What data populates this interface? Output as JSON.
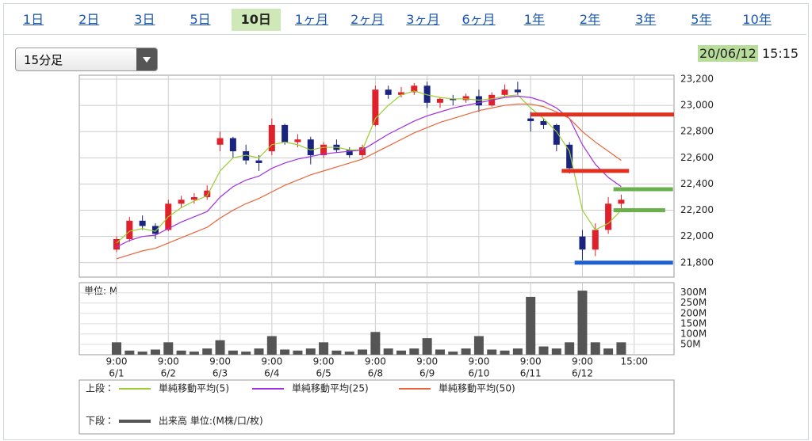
{
  "tabs": [
    "1日",
    "2日",
    "3日",
    "5日",
    "10日",
    "1ヶ月",
    "2ヶ月",
    "3ヶ月",
    "6ヶ月",
    "1年",
    "2年",
    "3年",
    "5年",
    "10年"
  ],
  "selected_tab": 4,
  "interval": "15分足",
  "timestamp": {
    "date": "20/06/12",
    "time": "15:15"
  },
  "chart_data": [
    {
      "type": "candlestick",
      "legend_prefix": "上段：",
      "xlim": [
        -0.72,
        10.77
      ],
      "xticks": [
        {
          "value": 0,
          "label": "9:00",
          "date": "6/1"
        },
        {
          "value": 1,
          "label": "9:00",
          "date": "6/2"
        },
        {
          "value": 2,
          "label": "9:00",
          "date": "6/3"
        },
        {
          "value": 3,
          "label": "9:00",
          "date": "6/4"
        },
        {
          "value": 4,
          "label": "9:00",
          "date": "6/5"
        },
        {
          "value": 5,
          "label": "9:00",
          "date": "6/8"
        },
        {
          "value": 6,
          "label": "9:00",
          "date": "6/9"
        },
        {
          "value": 7,
          "label": "9:00",
          "date": "6/10"
        },
        {
          "value": 8,
          "label": "9:00",
          "date": "6/11"
        },
        {
          "value": 9,
          "label": "9:00",
          "date": "6/12"
        },
        {
          "value": 10,
          "label": "15:00"
        }
      ],
      "ylim": [
        21690,
        23230
      ],
      "yticks": [
        {
          "value": 21800,
          "label": "21,800"
        },
        {
          "value": 22000,
          "label": "22,000"
        },
        {
          "value": 22200,
          "label": "22,200"
        },
        {
          "value": 22400,
          "label": "22,400"
        },
        {
          "value": 22600,
          "label": "22,600"
        },
        {
          "value": 22800,
          "label": "22,800"
        },
        {
          "value": 23000,
          "label": "23,000"
        },
        {
          "value": 23200,
          "label": "23,200"
        }
      ],
      "grid": true,
      "up_color": "#e0202a",
      "down_color": "#1a237e",
      "candles": {
        "x": [
          0,
          0.25,
          0.5,
          0.75,
          1,
          1.25,
          1.5,
          1.75,
          2,
          2.25,
          2.5,
          2.75,
          3,
          3.25,
          3.5,
          3.75,
          4,
          4.25,
          4.5,
          4.75,
          5,
          5.25,
          5.5,
          5.75,
          6,
          6.25,
          6.5,
          6.75,
          7,
          7.25,
          7.5,
          7.75,
          8,
          8.25,
          8.5,
          8.75,
          9,
          9.25,
          9.5,
          9.75
        ],
        "open": [
          21900,
          21980,
          22120,
          22080,
          22050,
          22250,
          22280,
          22300,
          22700,
          22750,
          22650,
          22580,
          22650,
          22850,
          22720,
          22740,
          22620,
          22700,
          22660,
          22620,
          22850,
          23120,
          23080,
          23100,
          23150,
          23020,
          23050,
          23040,
          23070,
          23000,
          23080,
          23120,
          22900,
          22880,
          22850,
          22700,
          22000,
          21900,
          22050,
          22250
        ],
        "high": [
          22000,
          22150,
          22160,
          22100,
          22280,
          22310,
          22330,
          22390,
          22800,
          22760,
          22700,
          22620,
          22900,
          22860,
          22780,
          22760,
          22720,
          22740,
          22680,
          22700,
          23150,
          23150,
          23140,
          23170,
          23180,
          23060,
          23080,
          23090,
          23120,
          23100,
          23160,
          23180,
          22950,
          22900,
          22860,
          22720,
          22050,
          22100,
          22300,
          22320
        ],
        "low": [
          21880,
          21960,
          22050,
          21980,
          22040,
          22220,
          22250,
          22280,
          22650,
          22600,
          22550,
          22500,
          22620,
          22700,
          22680,
          22550,
          22600,
          22640,
          22600,
          22600,
          22840,
          23050,
          23060,
          23080,
          22980,
          22980,
          23000,
          23020,
          22950,
          22990,
          23060,
          23080,
          22800,
          22820,
          22650,
          22480,
          21820,
          21850,
          22020,
          22200
        ],
        "close": [
          21980,
          22120,
          22080,
          22020,
          22250,
          22280,
          22300,
          22350,
          22750,
          22650,
          22580,
          22560,
          22850,
          22720,
          22740,
          22620,
          22700,
          22660,
          22620,
          22680,
          23120,
          23080,
          23100,
          23150,
          23020,
          23050,
          23040,
          23070,
          23000,
          23080,
          23120,
          23100,
          22880,
          22850,
          22700,
          22520,
          21900,
          22050,
          22250,
          22280
        ]
      },
      "series": [
        {
          "name": "単純移動平均(5)",
          "color": "#9acd32",
          "values": [
            21950,
            22040,
            22060,
            22040,
            22150,
            22220,
            22270,
            22310,
            22500,
            22600,
            22620,
            22600,
            22700,
            22720,
            22700,
            22660,
            22680,
            22680,
            22660,
            22660,
            22900,
            23000,
            23080,
            23110,
            23080,
            23060,
            23050,
            23050,
            23040,
            23050,
            23070,
            23080,
            22980,
            22900,
            22800,
            22650,
            22200,
            22050,
            22100,
            22200
          ]
        },
        {
          "name": "単純移動平均(25)",
          "color": "#a030e0",
          "values": [
            21920,
            21970,
            22000,
            22010,
            22060,
            22110,
            22150,
            22190,
            22300,
            22380,
            22430,
            22460,
            22520,
            22560,
            22590,
            22610,
            22630,
            22640,
            22650,
            22660,
            22720,
            22780,
            22830,
            22880,
            22920,
            22950,
            22980,
            23000,
            23020,
            23040,
            23060,
            23070,
            23060,
            23030,
            22980,
            22900,
            22700,
            22550,
            22450,
            22380
          ]
        },
        {
          "name": "単純移動平均(50)",
          "color": "#e8653a",
          "values": [
            21830,
            21860,
            21890,
            21910,
            21950,
            21990,
            22030,
            22070,
            22140,
            22200,
            22250,
            22290,
            22340,
            22390,
            22430,
            22470,
            22500,
            22530,
            22560,
            22590,
            22640,
            22690,
            22740,
            22790,
            22830,
            22870,
            22900,
            22930,
            22960,
            22980,
            23000,
            23010,
            23010,
            22990,
            22950,
            22900,
            22800,
            22720,
            22650,
            22580
          ]
        }
      ],
      "reference_lines": [
        {
          "value": 22930,
          "x": [
            8.0,
            10.77
          ],
          "color": "#e03020"
        },
        {
          "value": 22500,
          "x": [
            8.6,
            9.9
          ],
          "color": "#e03020"
        },
        {
          "value": 22360,
          "x": [
            9.6,
            10.75
          ],
          "color": "#6ab04c"
        },
        {
          "value": 22200,
          "x": [
            9.6,
            10.6
          ],
          "color": "#6ab04c"
        },
        {
          "value": 21800,
          "x": [
            8.85,
            10.75
          ],
          "color": "#1e5fd0"
        }
      ]
    },
    {
      "type": "bar",
      "unit_label": "単位: M",
      "legend_prefix": "下段：",
      "name": "出来高 単位:(M株/口/枚)",
      "color": "#555555",
      "ylim": [
        0,
        318
      ],
      "yticks": [
        {
          "value": 50,
          "label": "50M"
        },
        {
          "value": 100,
          "label": "100M"
        },
        {
          "value": 150,
          "label": "150M"
        },
        {
          "value": 200,
          "label": "200M"
        },
        {
          "value": 250,
          "label": "250M"
        },
        {
          "value": 300,
          "label": "300M"
        }
      ],
      "values": [
        60,
        20,
        15,
        25,
        60,
        20,
        15,
        30,
        70,
        20,
        15,
        30,
        90,
        25,
        20,
        30,
        60,
        20,
        15,
        25,
        110,
        30,
        20,
        30,
        80,
        25,
        15,
        30,
        90,
        25,
        20,
        30,
        280,
        40,
        30,
        60,
        310,
        60,
        30,
        60
      ]
    }
  ]
}
